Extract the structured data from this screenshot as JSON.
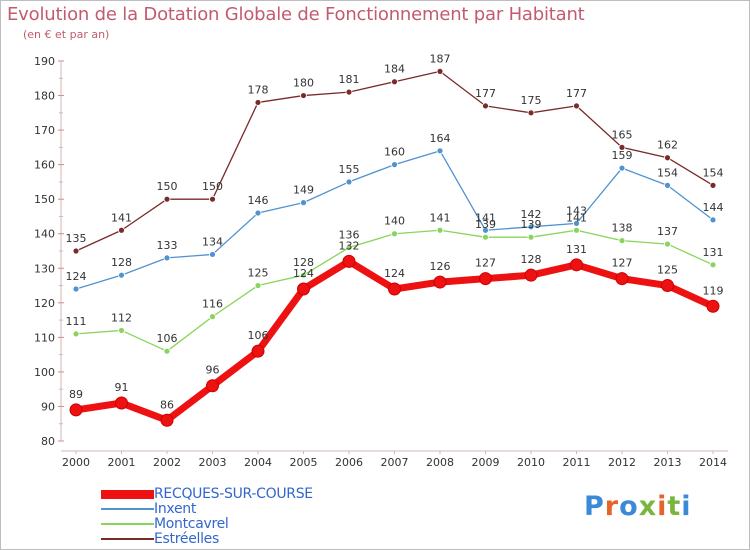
{
  "title": "Evolution de la Dotation Globale de Fonctionnement par Habitant",
  "subtitle": "(en € et par an)",
  "logo": {
    "text": "Proxiti",
    "colors": [
      "#3b8ad8",
      "#e8632a",
      "#3b8ad8",
      "#7ab63e",
      "#e8632a",
      "#7ab63e",
      "#3b8ad8"
    ]
  },
  "colors": {
    "axis": "#d9b3b3",
    "grid": "#e8e8e8",
    "legend_text": "#3366cc",
    "title": "#c25b6e"
  },
  "chart_data": {
    "type": "line",
    "title": "Evolution de la Dotation Globale de Fonctionnement par Habitant",
    "subtitle": "(en € et par an)",
    "categories": [
      "2000",
      "2001",
      "2002",
      "2003",
      "2004",
      "2005",
      "2006",
      "2007",
      "2008",
      "2009",
      "2010",
      "2011",
      "2012",
      "2013",
      "2014"
    ],
    "ylim": [
      80,
      190
    ],
    "yticks": [
      80,
      90,
      100,
      110,
      120,
      130,
      140,
      150,
      160,
      170,
      180,
      190
    ],
    "grid": false,
    "legend_position": "bottom-left",
    "series": [
      {
        "name": "RECQUES-SUR-COURSE",
        "color": "#ee1111",
        "values": [
          89,
          91,
          86,
          96,
          106,
          124,
          132,
          124,
          126,
          127,
          128,
          131,
          127,
          125,
          119
        ]
      },
      {
        "name": "Inxent",
        "color": "#4f93cf",
        "values": [
          124,
          128,
          133,
          134,
          146,
          149,
          155,
          160,
          164,
          141,
          142,
          143,
          159,
          154,
          144
        ]
      },
      {
        "name": "Montcavrel",
        "color": "#88d45c",
        "values": [
          111,
          112,
          106,
          116,
          125,
          128,
          136,
          140,
          141,
          139,
          139,
          141,
          138,
          137,
          131
        ]
      },
      {
        "name": "Estréelles",
        "color": "#7b2a2a",
        "values": [
          135,
          141,
          150,
          150,
          178,
          180,
          181,
          184,
          187,
          177,
          175,
          177,
          165,
          162,
          154
        ]
      }
    ]
  }
}
